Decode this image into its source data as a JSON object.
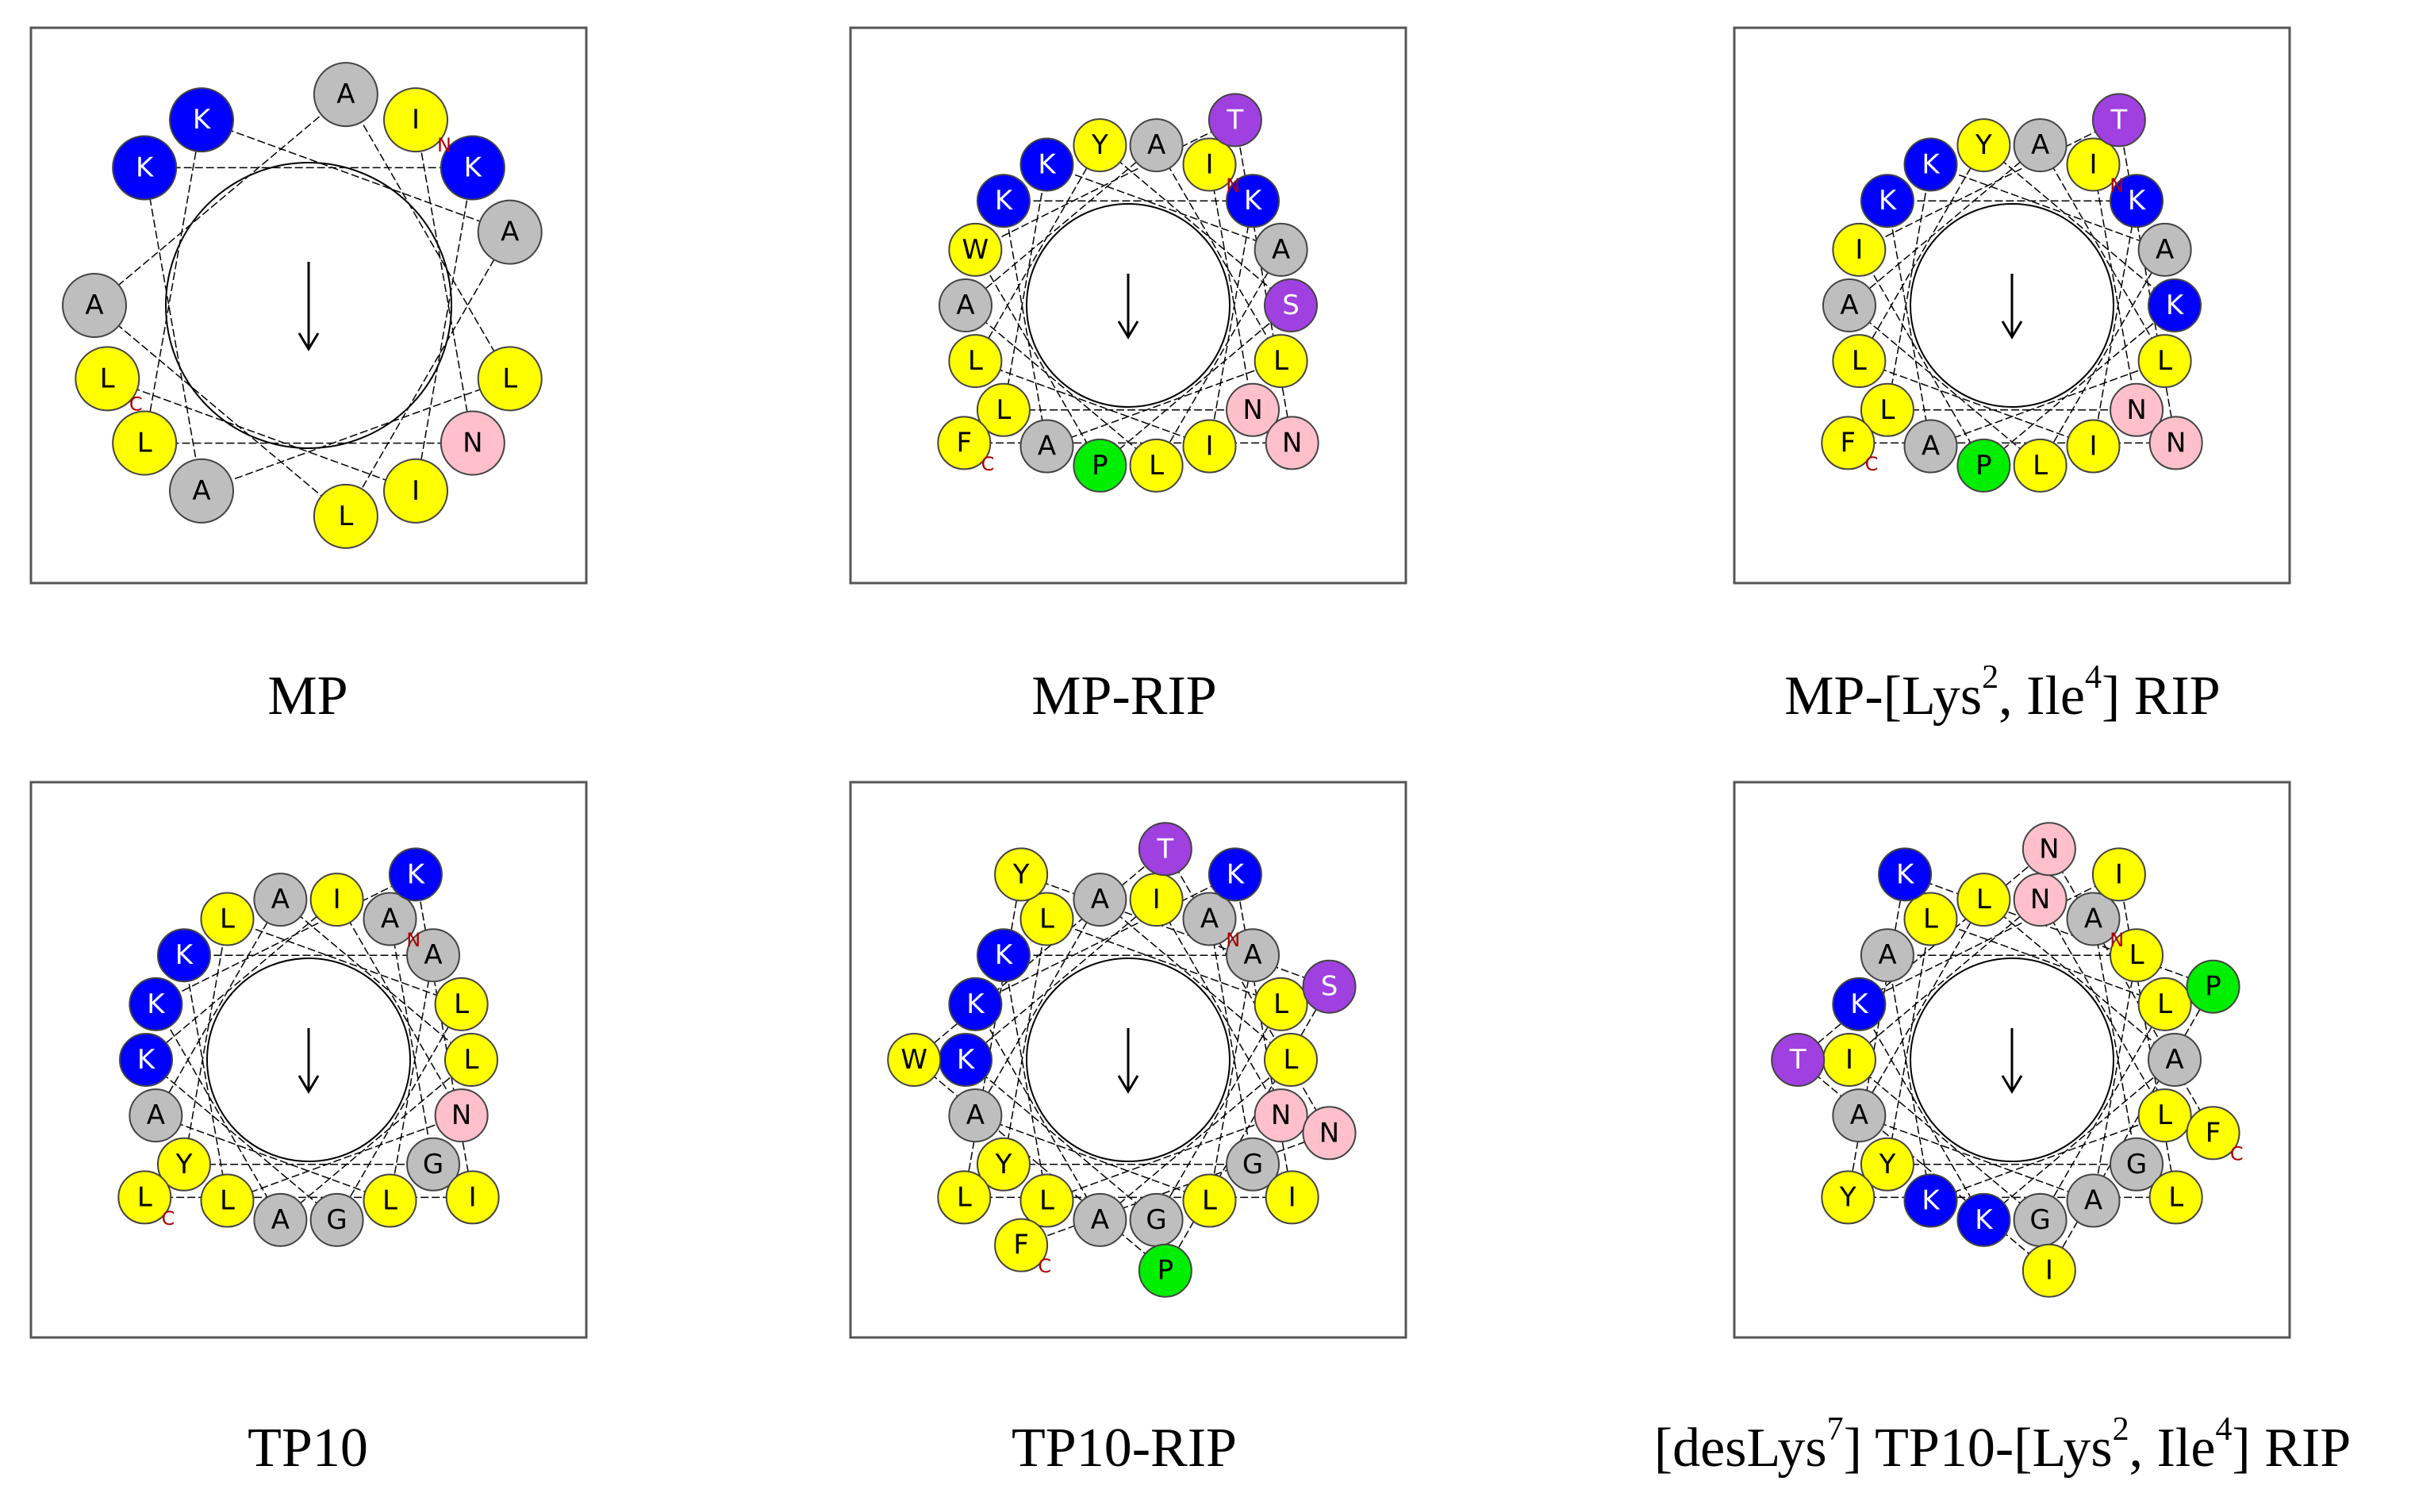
{
  "panels": [
    {
      "caption": [
        "MP"
      ],
      "terminals": [
        "N",
        "C"
      ],
      "residues": [
        {
          "aa": "I",
          "color": "#ffff00"
        },
        {
          "aa": "N",
          "color": "#ffc0cb"
        },
        {
          "aa": "L",
          "color": "#ffff00"
        },
        {
          "aa": "K",
          "color": "#0000ff"
        },
        {
          "aa": "A",
          "color": "#bebebe"
        },
        {
          "aa": "L",
          "color": "#ffff00"
        },
        {
          "aa": "A",
          "color": "#bebebe"
        },
        {
          "aa": "A",
          "color": "#bebebe"
        },
        {
          "aa": "L",
          "color": "#ffff00"
        },
        {
          "aa": "A",
          "color": "#bebebe"
        },
        {
          "aa": "K",
          "color": "#0000ff"
        },
        {
          "aa": "K",
          "color": "#0000ff"
        },
        {
          "aa": "I",
          "color": "#ffff00"
        },
        {
          "aa": "L",
          "color": "#ffff00"
        }
      ]
    },
    {
      "caption": [
        "MP-RIP"
      ],
      "terminals": [
        "N",
        "C"
      ],
      "residues": [
        {
          "aa": "I",
          "color": "#ffff00"
        },
        {
          "aa": "N",
          "color": "#ffc0cb"
        },
        {
          "aa": "L",
          "color": "#ffff00"
        },
        {
          "aa": "K",
          "color": "#0000ff"
        },
        {
          "aa": "A",
          "color": "#bebebe"
        },
        {
          "aa": "L",
          "color": "#ffff00"
        },
        {
          "aa": "A",
          "color": "#bebebe"
        },
        {
          "aa": "A",
          "color": "#bebebe"
        },
        {
          "aa": "L",
          "color": "#ffff00"
        },
        {
          "aa": "A",
          "color": "#bebebe"
        },
        {
          "aa": "K",
          "color": "#0000ff"
        },
        {
          "aa": "K",
          "color": "#0000ff"
        },
        {
          "aa": "I",
          "color": "#ffff00"
        },
        {
          "aa": "L",
          "color": "#ffff00"
        },
        {
          "aa": "Y",
          "color": "#ffff00"
        },
        {
          "aa": "S",
          "color": "#a040e0"
        },
        {
          "aa": "P",
          "color": "#00ee00"
        },
        {
          "aa": "W",
          "color": "#ffff00"
        },
        {
          "aa": "T",
          "color": "#a040e0"
        },
        {
          "aa": "N",
          "color": "#ffc0cb"
        },
        {
          "aa": "F",
          "color": "#ffff00"
        }
      ]
    },
    {
      "caption": [
        "MP-[Lys",
        "2",
        ", Ile",
        "4",
        "] RIP"
      ],
      "terminals": [
        "N",
        "C"
      ],
      "residues": [
        {
          "aa": "I",
          "color": "#ffff00"
        },
        {
          "aa": "N",
          "color": "#ffc0cb"
        },
        {
          "aa": "L",
          "color": "#ffff00"
        },
        {
          "aa": "K",
          "color": "#0000ff"
        },
        {
          "aa": "A",
          "color": "#bebebe"
        },
        {
          "aa": "L",
          "color": "#ffff00"
        },
        {
          "aa": "A",
          "color": "#bebebe"
        },
        {
          "aa": "A",
          "color": "#bebebe"
        },
        {
          "aa": "L",
          "color": "#ffff00"
        },
        {
          "aa": "A",
          "color": "#bebebe"
        },
        {
          "aa": "K",
          "color": "#0000ff"
        },
        {
          "aa": "K",
          "color": "#0000ff"
        },
        {
          "aa": "I",
          "color": "#ffff00"
        },
        {
          "aa": "L",
          "color": "#ffff00"
        },
        {
          "aa": "Y",
          "color": "#ffff00"
        },
        {
          "aa": "K",
          "color": "#0000ff"
        },
        {
          "aa": "P",
          "color": "#00ee00"
        },
        {
          "aa": "I",
          "color": "#ffff00"
        },
        {
          "aa": "T",
          "color": "#a040e0"
        },
        {
          "aa": "N",
          "color": "#ffc0cb"
        },
        {
          "aa": "F",
          "color": "#ffff00"
        }
      ]
    },
    {
      "caption": [
        "TP10"
      ],
      "terminals": [
        "N",
        "C"
      ],
      "residues": [
        {
          "aa": "A",
          "color": "#bebebe"
        },
        {
          "aa": "G",
          "color": "#bebebe"
        },
        {
          "aa": "Y",
          "color": "#ffff00"
        },
        {
          "aa": "L",
          "color": "#ffff00"
        },
        {
          "aa": "L",
          "color": "#ffff00"
        },
        {
          "aa": "G",
          "color": "#bebebe"
        },
        {
          "aa": "K",
          "color": "#0000ff"
        },
        {
          "aa": "I",
          "color": "#ffff00"
        },
        {
          "aa": "N",
          "color": "#ffc0cb"
        },
        {
          "aa": "L",
          "color": "#ffff00"
        },
        {
          "aa": "K",
          "color": "#0000ff"
        },
        {
          "aa": "A",
          "color": "#bebebe"
        },
        {
          "aa": "L",
          "color": "#ffff00"
        },
        {
          "aa": "A",
          "color": "#bebebe"
        },
        {
          "aa": "A",
          "color": "#bebebe"
        },
        {
          "aa": "L",
          "color": "#ffff00"
        },
        {
          "aa": "A",
          "color": "#bebebe"
        },
        {
          "aa": "K",
          "color": "#0000ff"
        },
        {
          "aa": "K",
          "color": "#0000ff"
        },
        {
          "aa": "I",
          "color": "#ffff00"
        },
        {
          "aa": "L",
          "color": "#ffff00"
        }
      ]
    },
    {
      "caption": [
        "TP10-RIP"
      ],
      "terminals": [
        "N",
        "C"
      ],
      "residues": [
        {
          "aa": "A",
          "color": "#bebebe"
        },
        {
          "aa": "G",
          "color": "#bebebe"
        },
        {
          "aa": "Y",
          "color": "#ffff00"
        },
        {
          "aa": "L",
          "color": "#ffff00"
        },
        {
          "aa": "L",
          "color": "#ffff00"
        },
        {
          "aa": "G",
          "color": "#bebebe"
        },
        {
          "aa": "K",
          "color": "#0000ff"
        },
        {
          "aa": "I",
          "color": "#ffff00"
        },
        {
          "aa": "N",
          "color": "#ffc0cb"
        },
        {
          "aa": "L",
          "color": "#ffff00"
        },
        {
          "aa": "K",
          "color": "#0000ff"
        },
        {
          "aa": "A",
          "color": "#bebebe"
        },
        {
          "aa": "L",
          "color": "#ffff00"
        },
        {
          "aa": "A",
          "color": "#bebebe"
        },
        {
          "aa": "A",
          "color": "#bebebe"
        },
        {
          "aa": "L",
          "color": "#ffff00"
        },
        {
          "aa": "A",
          "color": "#bebebe"
        },
        {
          "aa": "K",
          "color": "#0000ff"
        },
        {
          "aa": "K",
          "color": "#0000ff"
        },
        {
          "aa": "I",
          "color": "#ffff00"
        },
        {
          "aa": "L",
          "color": "#ffff00"
        },
        {
          "aa": "Y",
          "color": "#ffff00"
        },
        {
          "aa": "S",
          "color": "#a040e0"
        },
        {
          "aa": "P",
          "color": "#00ee00"
        },
        {
          "aa": "W",
          "color": "#ffff00"
        },
        {
          "aa": "T",
          "color": "#a040e0"
        },
        {
          "aa": "N",
          "color": "#ffc0cb"
        },
        {
          "aa": "F",
          "color": "#ffff00"
        }
      ]
    },
    {
      "caption": [
        "[desLys",
        "7",
        "] TP10-[Lys",
        "2",
        ", Ile",
        "4",
        "] RIP"
      ],
      "terminals": [
        "N",
        "C"
      ],
      "residues": [
        {
          "aa": "A",
          "color": "#bebebe"
        },
        {
          "aa": "G",
          "color": "#bebebe"
        },
        {
          "aa": "Y",
          "color": "#ffff00"
        },
        {
          "aa": "L",
          "color": "#ffff00"
        },
        {
          "aa": "L",
          "color": "#ffff00"
        },
        {
          "aa": "G",
          "color": "#bebebe"
        },
        {
          "aa": "I",
          "color": "#ffff00"
        },
        {
          "aa": "N",
          "color": "#ffc0cb"
        },
        {
          "aa": "L",
          "color": "#ffff00"
        },
        {
          "aa": "K",
          "color": "#0000ff"
        },
        {
          "aa": "A",
          "color": "#bebebe"
        },
        {
          "aa": "L",
          "color": "#ffff00"
        },
        {
          "aa": "A",
          "color": "#bebebe"
        },
        {
          "aa": "A",
          "color": "#bebebe"
        },
        {
          "aa": "L",
          "color": "#ffff00"
        },
        {
          "aa": "A",
          "color": "#bebebe"
        },
        {
          "aa": "K",
          "color": "#0000ff"
        },
        {
          "aa": "K",
          "color": "#0000ff"
        },
        {
          "aa": "I",
          "color": "#ffff00"
        },
        {
          "aa": "L",
          "color": "#ffff00"
        },
        {
          "aa": "Y",
          "color": "#ffff00"
        },
        {
          "aa": "K",
          "color": "#0000ff"
        },
        {
          "aa": "P",
          "color": "#00ee00"
        },
        {
          "aa": "I",
          "color": "#ffff00"
        },
        {
          "aa": "T",
          "color": "#a040e0"
        },
        {
          "aa": "N",
          "color": "#ffc0cb"
        },
        {
          "aa": "F",
          "color": "#ffff00"
        }
      ]
    }
  ]
}
